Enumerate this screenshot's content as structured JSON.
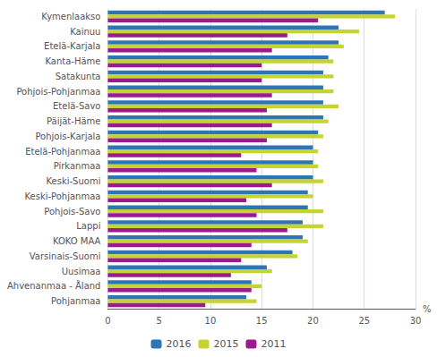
{
  "chart_data": {
    "type": "bar",
    "orientation": "horizontal",
    "categories": [
      "Kymenlaakso",
      "Kainuu",
      "Etelä-Karjala",
      "Kanta-Häme",
      "Satakunta",
      "Pohjois-Pohjanmaa",
      "Etelä-Savo",
      "Päijät-Häme",
      "Pohjois-Karjala",
      "Etelä-Pohjanmaa",
      "Pirkanmaa",
      "Keski-Suomi",
      "Keski-Pohjanmaa",
      "Pohjois-Savo",
      "Lappi",
      "KOKO MAA",
      "Varsinais-Suomi",
      "Uusimaa",
      "Ahvenanmaa - Åland",
      "Pohjanmaa"
    ],
    "series": [
      {
        "name": "2016",
        "color": "#2E75B6",
        "values": [
          27.0,
          22.5,
          22.5,
          21.5,
          21.0,
          21.0,
          21.0,
          21.0,
          20.5,
          20.0,
          20.0,
          20.0,
          19.5,
          19.5,
          19.0,
          19.0,
          18.0,
          15.5,
          14.0,
          13.5
        ]
      },
      {
        "name": "2015",
        "color": "#C5D432",
        "values": [
          28.0,
          24.5,
          23.0,
          22.0,
          22.0,
          22.0,
          22.5,
          21.5,
          21.0,
          20.5,
          20.5,
          21.0,
          20.0,
          21.0,
          21.0,
          19.5,
          18.5,
          16.0,
          15.0,
          14.5
        ]
      },
      {
        "name": "2011",
        "color": "#9B1B8E",
        "values": [
          20.5,
          17.5,
          16.0,
          15.0,
          15.0,
          16.0,
          15.5,
          16.0,
          15.5,
          13.0,
          14.5,
          16.0,
          13.5,
          14.5,
          17.5,
          14.0,
          13.0,
          12.0,
          14.0,
          9.5
        ]
      }
    ],
    "xlabel": "%",
    "xlim": [
      0,
      30
    ],
    "xticks": [
      0,
      5,
      10,
      15,
      20,
      25,
      30
    ],
    "grid": true,
    "legend": "bottom"
  }
}
